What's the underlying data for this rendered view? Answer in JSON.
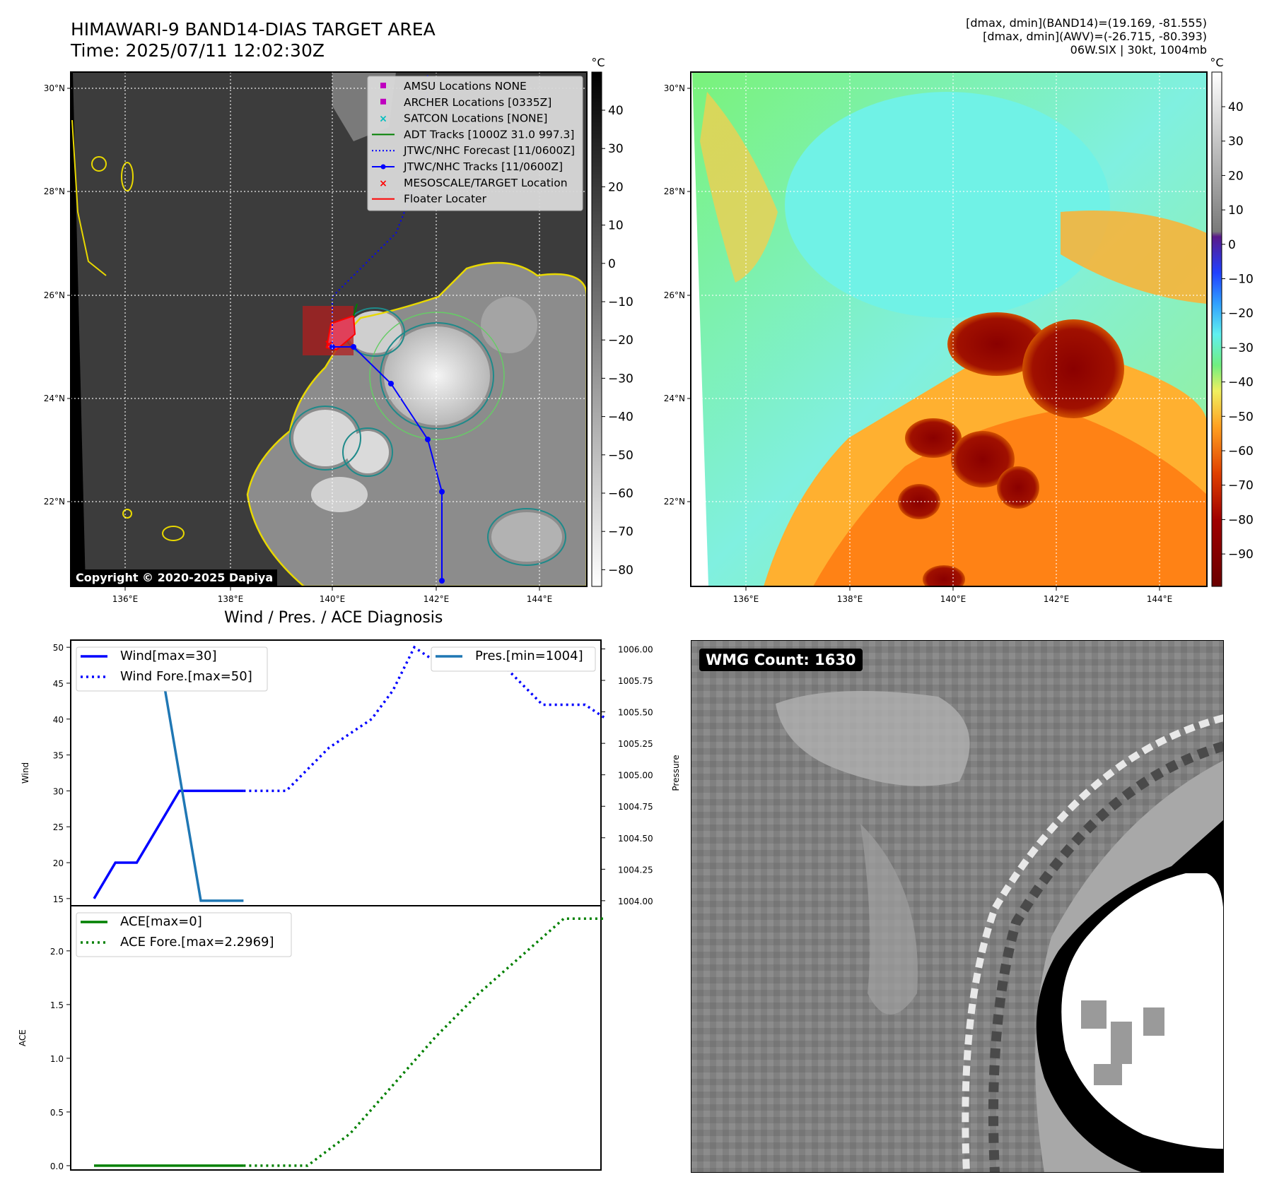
{
  "header": {
    "title_line1": "HIMAWARI-9 BAND14-DIAS TARGET AREA",
    "title_line2": "Time: 2025/07/11 12:02:30Z",
    "info_line1": "[dmax, dmin](BAND14)=(19.169, -81.555)",
    "info_line2": "[dmax, dmin](AWV)=(-26.715, -80.393)",
    "info_line3": "06W.SIX | 30kt, 1004mb"
  },
  "maps": {
    "lat_labels": [
      "30°N",
      "28°N",
      "26°N",
      "24°N",
      "22°N"
    ],
    "lon_labels": [
      "136°E",
      "138°E",
      "140°E",
      "142°E",
      "144°E"
    ],
    "copyright": "Copyright © 2020-2025 Dapiya",
    "colorbar_unit": "°C",
    "left_colorbar_ticks": [
      "40",
      "30",
      "20",
      "10",
      "0",
      "−10",
      "−20",
      "−30",
      "−40",
      "−50",
      "−60",
      "−70",
      "−80"
    ],
    "right_colorbar_ticks": [
      "40",
      "30",
      "20",
      "10",
      "0",
      "−10",
      "−20",
      "−30",
      "−40",
      "−50",
      "−60",
      "−70",
      "−80",
      "−90"
    ],
    "legend": [
      {
        "label": "AMSU Locations NONE",
        "marker": "square",
        "color": "#bf00bf"
      },
      {
        "label": "ARCHER Locations [0335Z]",
        "marker": "square",
        "color": "#bf00bf"
      },
      {
        "label": "SATCON Locations [NONE]",
        "marker": "x",
        "color": "#00bfbf"
      },
      {
        "label": "ADT Tracks [1000Z 31.0 997.3]",
        "marker": "line",
        "color": "#008000"
      },
      {
        "label": "JTWC/NHC Forecast [11/0600Z]",
        "marker": "dotted",
        "color": "#0000ff"
      },
      {
        "label": "JTWC/NHC Tracks [11/0600Z]",
        "marker": "line-dot",
        "color": "#0000ff"
      },
      {
        "label": "MESOSCALE/TARGET Location",
        "marker": "x",
        "color": "#ff0000"
      },
      {
        "label": "Floater Locater",
        "marker": "line",
        "color": "#ff0000"
      }
    ]
  },
  "wmg": {
    "label": "WMG Count: 1630"
  },
  "chart_data": [
    {
      "type": "line",
      "title": "Wind / Pres. / ACE Diagnosis",
      "ylabel": "Wind",
      "ylabel2": "Pressure",
      "ylim": [
        14,
        51
      ],
      "ylim2": [
        1003.96,
        1006.07
      ],
      "yticks": [
        15,
        20,
        25,
        30,
        35,
        40,
        45,
        50
      ],
      "yticks2": [
        "1004.00",
        "1004.25",
        "1004.50",
        "1004.75",
        "1005.00",
        "1005.25",
        "1005.50",
        "1005.75",
        "1006.00"
      ],
      "series": [
        {
          "name": "Wind[max=30]",
          "axis": "left",
          "color": "#0000ff",
          "style": "solid",
          "x": [
            0,
            1,
            2,
            4,
            5,
            6,
            7
          ],
          "y": [
            15,
            20,
            20,
            30,
            30,
            30,
            30
          ]
        },
        {
          "name": "Wind Fore.[max=50]",
          "axis": "left",
          "color": "#0000ff",
          "style": "dotted",
          "x": [
            7,
            8,
            9,
            10,
            11,
            12,
            13,
            14,
            15,
            16,
            17,
            18,
            19,
            20,
            21,
            22,
            23,
            24
          ],
          "y": [
            30,
            30,
            30,
            33,
            36,
            38,
            40,
            44,
            50,
            48,
            48,
            48,
            48,
            45,
            42,
            42,
            42,
            40
          ]
        },
        {
          "name": "Pres.[min=1004]",
          "axis": "right",
          "color": "#1f77b4",
          "style": "solid",
          "x": [
            0,
            3,
            4,
            5,
            6,
            7
          ],
          "y": [
            1006,
            1006,
            1005,
            1004,
            1004,
            1004
          ]
        }
      ]
    },
    {
      "type": "line",
      "ylabel": "ACE",
      "ylim": [
        -0.04,
        2.42
      ],
      "yticks": [
        "0.0",
        "0.5",
        "1.0",
        "1.5",
        "2.0"
      ],
      "series": [
        {
          "name": "ACE[max=0]",
          "color": "#008000",
          "style": "solid",
          "x": [
            0,
            7
          ],
          "y": [
            0,
            0
          ]
        },
        {
          "name": "ACE Fore.[max=2.2969]",
          "color": "#008000",
          "style": "dotted",
          "x": [
            7,
            10,
            12,
            14,
            16,
            18,
            20,
            22,
            24
          ],
          "y": [
            0,
            0,
            0.3,
            0.75,
            1.2,
            1.6,
            1.95,
            2.3,
            2.3
          ]
        }
      ]
    }
  ]
}
